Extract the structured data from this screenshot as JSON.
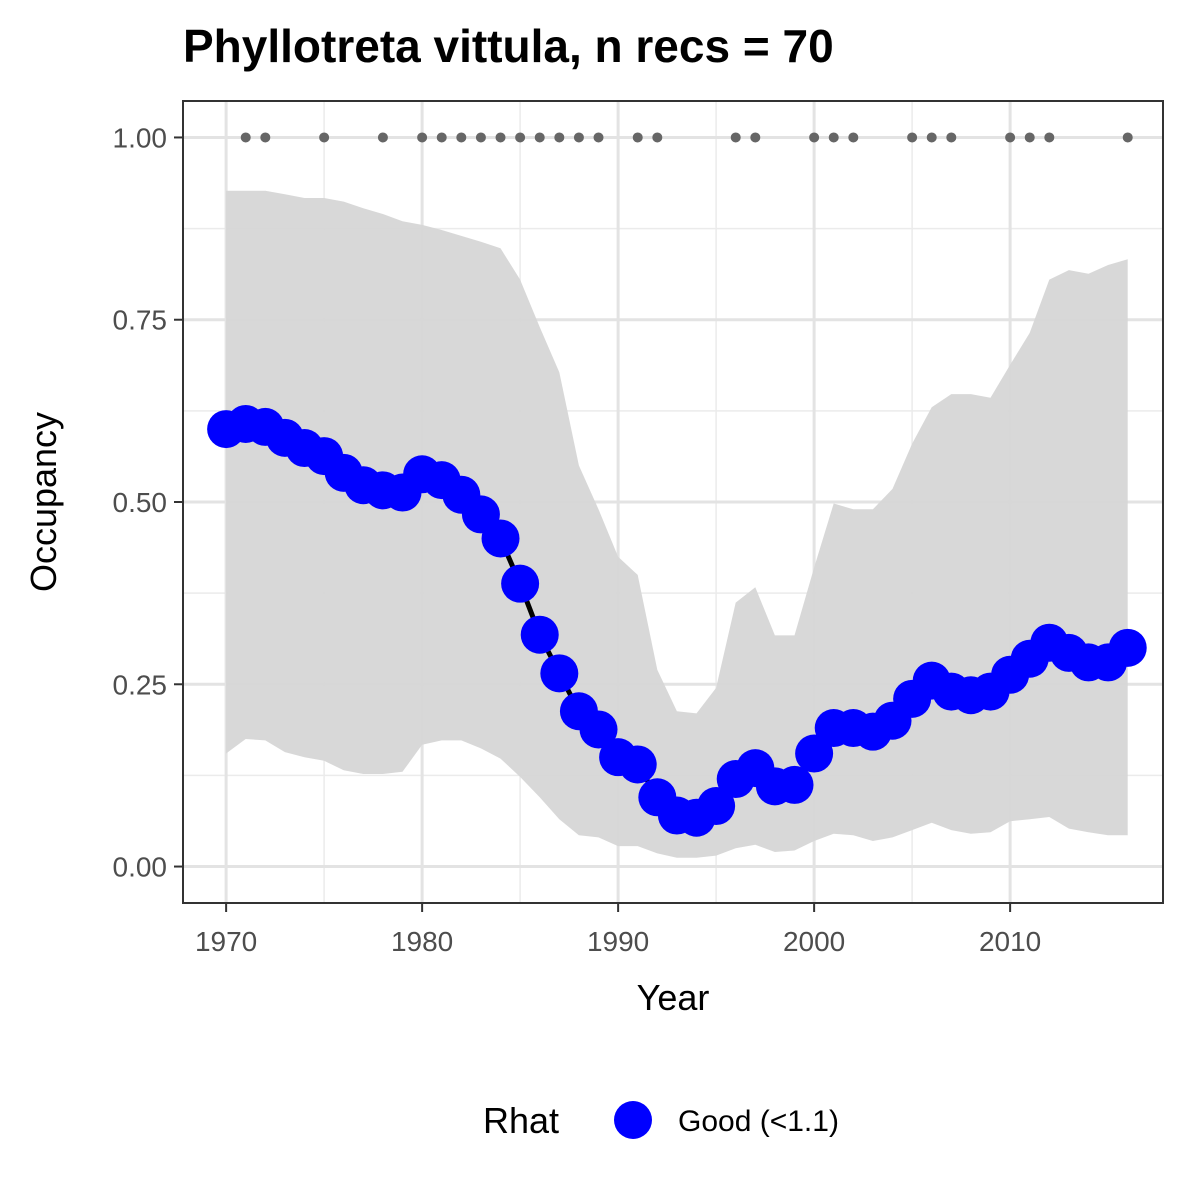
{
  "chart_data": {
    "type": "line",
    "title": "Phyllotreta vittula, n recs = 70",
    "xlabel": "Year",
    "ylabel": "Occupancy",
    "xlim": [
      1967.8,
      2017.8
    ],
    "ylim": [
      -0.05,
      1.05
    ],
    "x_ticks": [
      1970,
      1980,
      1990,
      2000,
      2010
    ],
    "y_ticks": [
      0.0,
      0.25,
      0.5,
      0.75,
      1.0
    ],
    "y_tick_labels": [
      "0.00",
      "0.25",
      "0.50",
      "0.75",
      "1.00"
    ],
    "grid": true,
    "legend": {
      "title": "Rhat",
      "position": "bottom",
      "entries": [
        {
          "label": "Good (<1.1)",
          "color": "#0000ff"
        }
      ]
    },
    "colors": {
      "point": "#0000ff",
      "line": "#000000",
      "ribbon": "#d6d6d6",
      "record": "#666666"
    },
    "years": [
      1970,
      1971,
      1972,
      1973,
      1974,
      1975,
      1976,
      1977,
      1978,
      1979,
      1980,
      1981,
      1982,
      1983,
      1984,
      1985,
      1986,
      1987,
      1988,
      1989,
      1990,
      1991,
      1992,
      1993,
      1994,
      1995,
      1996,
      1997,
      1998,
      1999,
      2000,
      2001,
      2002,
      2003,
      2004,
      2005,
      2006,
      2007,
      2008,
      2009,
      2010,
      2011,
      2012,
      2013,
      2014,
      2015,
      2016
    ],
    "series": [
      {
        "name": "Good (<1.1)",
        "values": [
          0.6,
          0.607,
          0.603,
          0.588,
          0.574,
          0.563,
          0.54,
          0.523,
          0.516,
          0.513,
          0.538,
          0.53,
          0.51,
          0.483,
          0.45,
          0.388,
          0.318,
          0.265,
          0.213,
          0.188,
          0.15,
          0.14,
          0.095,
          0.07,
          0.067,
          0.083,
          0.12,
          0.135,
          0.11,
          0.112,
          0.155,
          0.19,
          0.19,
          0.185,
          0.2,
          0.23,
          0.255,
          0.24,
          0.235,
          0.24,
          0.263,
          0.285,
          0.307,
          0.293,
          0.28,
          0.28,
          0.3
        ]
      }
    ],
    "ci_upper": [
      0.927,
      0.927,
      0.927,
      0.922,
      0.917,
      0.917,
      0.912,
      0.903,
      0.895,
      0.885,
      0.88,
      0.873,
      0.865,
      0.857,
      0.848,
      0.805,
      0.74,
      0.678,
      0.55,
      0.49,
      0.425,
      0.4,
      0.27,
      0.213,
      0.21,
      0.245,
      0.362,
      0.383,
      0.317,
      0.317,
      0.41,
      0.498,
      0.49,
      0.49,
      0.518,
      0.58,
      0.63,
      0.648,
      0.648,
      0.643,
      0.688,
      0.732,
      0.805,
      0.818,
      0.813,
      0.825,
      0.833
    ],
    "ci_lower": [
      0.155,
      0.175,
      0.173,
      0.157,
      0.15,
      0.145,
      0.132,
      0.127,
      0.127,
      0.13,
      0.167,
      0.173,
      0.173,
      0.162,
      0.148,
      0.123,
      0.095,
      0.065,
      0.043,
      0.04,
      0.028,
      0.028,
      0.018,
      0.012,
      0.012,
      0.015,
      0.025,
      0.03,
      0.02,
      0.022,
      0.035,
      0.045,
      0.043,
      0.035,
      0.04,
      0.05,
      0.06,
      0.05,
      0.045,
      0.047,
      0.062,
      0.065,
      0.068,
      0.052,
      0.047,
      0.043,
      0.043
    ],
    "record_years": [
      1971,
      1972,
      1975,
      1978,
      1980,
      1981,
      1982,
      1983,
      1984,
      1985,
      1986,
      1987,
      1988,
      1989,
      1991,
      1992,
      1996,
      1997,
      2000,
      2001,
      2002,
      2005,
      2006,
      2007,
      2010,
      2011,
      2012,
      2016
    ],
    "record_value": 1.0
  }
}
